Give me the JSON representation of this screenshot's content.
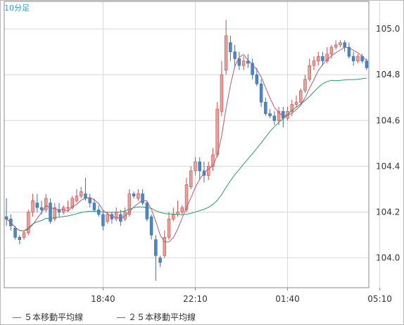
{
  "timeframe_label": "10分足",
  "colors": {
    "up": "#e8a09a",
    "up_border": "#c0504d",
    "down": "#4a86c8",
    "down_border": "#3a6fa8",
    "ma5": "#b05c78",
    "ma25": "#2f9a6a",
    "grid": "#d8d8d8",
    "axis_text": "#333333",
    "plot_border": "#888888"
  },
  "legend": [
    {
      "label": "５本移動平均線",
      "color": "#b05c78"
    },
    {
      "label": "２５本移動平均線",
      "color": "#2f9a6a"
    }
  ],
  "chart_data": {
    "type": "candlestick",
    "y_ticks": [
      104.0,
      104.2,
      104.4,
      104.6,
      104.8,
      105.0
    ],
    "y_tick_labels": [
      "104.0",
      "104.2",
      "104.4",
      "104.6",
      "104.8",
      "105.0"
    ],
    "ylim": [
      103.87,
      105.12
    ],
    "x_tick_labels": [
      {
        "label": "18:40",
        "index": 22
      },
      {
        "label": "22:10",
        "index": 43
      },
      {
        "label": "01:40",
        "index": 64
      },
      {
        "label": "05:10",
        "index": 85
      }
    ],
    "grid": true,
    "y_axis_position": "right",
    "candles": [
      [
        104.18,
        104.17,
        104.26,
        104.14
      ],
      [
        104.17,
        104.14,
        104.19,
        104.12
      ],
      [
        104.13,
        104.09,
        104.14,
        104.08
      ],
      [
        104.09,
        104.08,
        104.1,
        104.06
      ],
      [
        104.09,
        104.11,
        104.12,
        104.08
      ],
      [
        104.11,
        104.2,
        104.21,
        104.1
      ],
      [
        104.2,
        104.25,
        104.28,
        104.18
      ],
      [
        104.24,
        104.22,
        104.28,
        104.2
      ],
      [
        104.22,
        104.21,
        104.25,
        104.19
      ],
      [
        104.21,
        104.26,
        104.28,
        104.2
      ],
      [
        104.24,
        104.16,
        104.26,
        104.15
      ],
      [
        104.17,
        104.22,
        104.24,
        104.16
      ],
      [
        104.21,
        104.2,
        104.24,
        104.18
      ],
      [
        104.2,
        104.22,
        104.23,
        104.19
      ],
      [
        104.22,
        104.22,
        104.25,
        104.2
      ],
      [
        104.22,
        104.26,
        104.27,
        104.21
      ],
      [
        104.25,
        104.27,
        104.3,
        104.24
      ],
      [
        104.27,
        104.29,
        104.31,
        104.26
      ],
      [
        104.28,
        104.26,
        104.35,
        104.25
      ],
      [
        104.26,
        104.24,
        104.28,
        104.22
      ],
      [
        104.24,
        104.21,
        104.26,
        104.2
      ],
      [
        104.21,
        104.19,
        104.23,
        104.18
      ],
      [
        104.19,
        104.14,
        104.21,
        104.12
      ],
      [
        104.16,
        104.19,
        104.2,
        104.15
      ],
      [
        104.19,
        104.17,
        104.2,
        104.15
      ],
      [
        104.17,
        104.2,
        104.22,
        104.16
      ],
      [
        104.19,
        104.16,
        104.21,
        104.14
      ],
      [
        104.17,
        104.2,
        104.22,
        104.16
      ],
      [
        104.19,
        104.28,
        104.3,
        104.18
      ],
      [
        104.28,
        104.27,
        104.29,
        104.26
      ],
      [
        104.26,
        104.28,
        104.3,
        104.25
      ],
      [
        104.28,
        104.24,
        104.3,
        104.23
      ],
      [
        104.24,
        104.17,
        104.25,
        104.16
      ],
      [
        104.18,
        104.1,
        104.19,
        104.08
      ],
      [
        104.08,
        104.01,
        104.1,
        103.9
      ],
      [
        104.0,
        103.98,
        104.01,
        103.96
      ],
      [
        104.01,
        104.09,
        104.12,
        104.0
      ],
      [
        104.09,
        104.17,
        104.2,
        104.08
      ],
      [
        104.17,
        104.19,
        104.22,
        104.16
      ],
      [
        104.19,
        104.2,
        104.25,
        104.18
      ],
      [
        104.2,
        104.22,
        104.23,
        104.19
      ],
      [
        104.21,
        104.32,
        104.35,
        104.2
      ],
      [
        104.31,
        104.38,
        104.4,
        104.3
      ],
      [
        104.38,
        104.42,
        104.44,
        104.36
      ],
      [
        104.42,
        104.38,
        104.44,
        104.34
      ],
      [
        104.38,
        104.36,
        104.42,
        104.33
      ],
      [
        104.36,
        104.4,
        104.42,
        104.34
      ],
      [
        104.4,
        104.45,
        104.48,
        104.38
      ],
      [
        104.45,
        104.65,
        104.68,
        104.44
      ],
      [
        104.64,
        104.8,
        104.86,
        104.62
      ],
      [
        104.82,
        104.97,
        105.04,
        104.8
      ],
      [
        104.94,
        104.9,
        104.97,
        104.86
      ],
      [
        104.9,
        104.87,
        104.93,
        104.83
      ],
      [
        104.87,
        104.84,
        104.9,
        104.82
      ],
      [
        104.84,
        104.86,
        104.88,
        104.82
      ],
      [
        104.86,
        104.85,
        104.89,
        104.83
      ],
      [
        104.85,
        104.8,
        104.87,
        104.78
      ],
      [
        104.8,
        104.76,
        104.83,
        104.75
      ],
      [
        104.76,
        104.68,
        104.78,
        104.66
      ],
      [
        104.68,
        104.63,
        104.7,
        104.62
      ],
      [
        104.63,
        104.62,
        104.65,
        104.61
      ],
      [
        104.62,
        104.6,
        104.64,
        104.58
      ],
      [
        104.6,
        104.64,
        104.66,
        104.58
      ],
      [
        104.64,
        104.61,
        104.66,
        104.57
      ],
      [
        104.61,
        104.64,
        104.66,
        104.6
      ],
      [
        104.64,
        104.67,
        104.69,
        104.62
      ],
      [
        104.67,
        104.68,
        104.71,
        104.66
      ],
      [
        104.68,
        104.73,
        104.74,
        104.67
      ],
      [
        104.73,
        104.78,
        104.8,
        104.72
      ],
      [
        104.78,
        104.84,
        104.87,
        104.77
      ],
      [
        104.84,
        104.86,
        104.88,
        104.82
      ],
      [
        104.86,
        104.88,
        104.9,
        104.84
      ],
      [
        104.88,
        104.86,
        104.9,
        104.84
      ],
      [
        104.86,
        104.89,
        104.92,
        104.85
      ],
      [
        104.89,
        104.92,
        104.93,
        104.87
      ],
      [
        104.92,
        104.93,
        104.95,
        104.91
      ],
      [
        104.93,
        104.94,
        104.95,
        104.92
      ],
      [
        104.94,
        104.92,
        104.95,
        104.9
      ],
      [
        104.92,
        104.88,
        104.94,
        104.87
      ],
      [
        104.88,
        104.86,
        104.9,
        104.84
      ],
      [
        104.86,
        104.88,
        104.89,
        104.85
      ],
      [
        104.88,
        104.86,
        104.89,
        104.85
      ],
      [
        104.86,
        104.83,
        104.87,
        104.82
      ]
    ]
  }
}
